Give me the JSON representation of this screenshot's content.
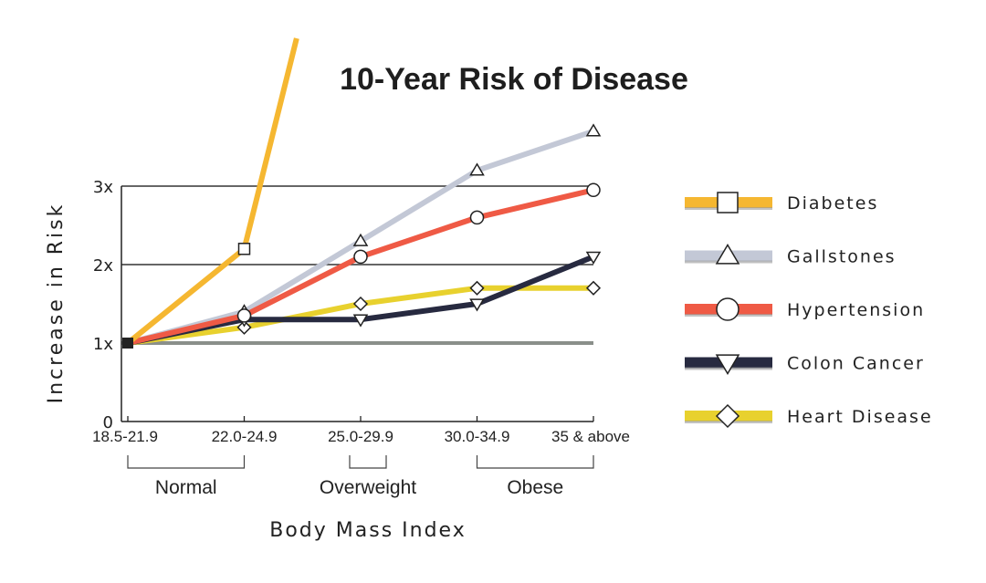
{
  "chart_data": {
    "type": "line",
    "title": "10-Year Risk of Disease",
    "xlabel": "Body Mass Index",
    "ylabel": "Increase in Risk",
    "categories": [
      "18.5-21.9",
      "22.0-24.9",
      "25.0-29.9",
      "30.0-34.9",
      "35 & above"
    ],
    "yticks": [
      {
        "value": 0,
        "label": "0"
      },
      {
        "value": 1,
        "label": "1x"
      },
      {
        "value": 2,
        "label": "2x"
      },
      {
        "value": 3,
        "label": "3x"
      }
    ],
    "ylim": [
      0,
      3
    ],
    "grid": true,
    "legend_position": "right",
    "groups": [
      {
        "label": "Normal",
        "from": 0,
        "to": 1
      },
      {
        "label": "Overweight",
        "from": 2,
        "to": 2
      },
      {
        "label": "Obese",
        "from": 3,
        "to": 4
      }
    ],
    "series": [
      {
        "name": "Diabetes",
        "color": "#f5b731",
        "marker": "square",
        "values": [
          1.0,
          2.2,
          null,
          null,
          null
        ],
        "note": "line continues off-scale above 3x beyond 22.0-24.9",
        "offscale_end": {
          "x_index": 1.45,
          "value": 4.9
        }
      },
      {
        "name": "Gallstones",
        "color": "#c3c8d6",
        "marker": "triangle-up",
        "values": [
          1.0,
          1.4,
          2.3,
          3.2,
          3.7
        ]
      },
      {
        "name": "Hypertension",
        "color": "#ef5a45",
        "marker": "circle",
        "values": [
          1.0,
          1.35,
          2.1,
          2.6,
          2.95
        ]
      },
      {
        "name": "Colon Cancer",
        "color": "#272a40",
        "marker": "triangle-down",
        "values": [
          1.0,
          1.3,
          1.3,
          1.5,
          2.1
        ]
      },
      {
        "name": "Heart Disease",
        "color": "#e8d12e",
        "marker": "diamond",
        "values": [
          1.0,
          1.2,
          1.5,
          1.7,
          1.7
        ]
      }
    ],
    "baseline": {
      "value": 1.0,
      "color": "#8a8f8a"
    }
  }
}
